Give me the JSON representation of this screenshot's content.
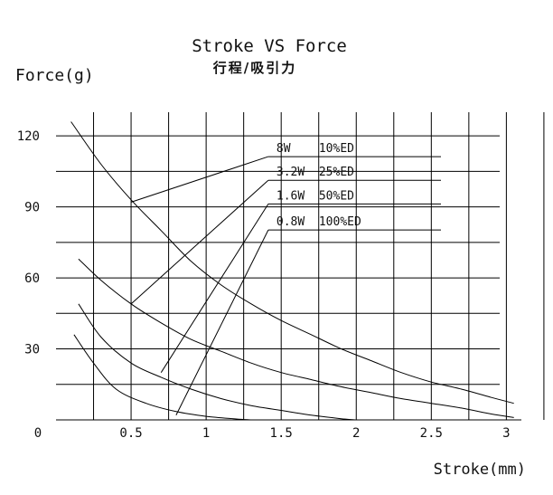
{
  "chart_data": {
    "type": "line",
    "title": "Stroke VS  Force",
    "subtitle": "行程/吸引力",
    "xlabel": "Stroke(mm)",
    "ylabel": "Force(g)",
    "xlim": [
      0,
      3.1
    ],
    "ylim": [
      0,
      130
    ],
    "x_ticks": [
      0.5,
      1,
      1.5,
      2,
      2.5,
      3
    ],
    "x_tick_labels": [
      "0.5",
      "1",
      "1.5",
      "2",
      "2.5",
      "3"
    ],
    "y_ticks": [
      0,
      30,
      60,
      90,
      120
    ],
    "y_tick_labels": [
      "0",
      "30",
      "60",
      "90",
      "120"
    ],
    "grid": true,
    "series": [
      {
        "name": "8W    10%ED",
        "x": [
          0.1,
          0.3,
          0.5,
          0.7,
          0.9,
          1.1,
          1.3,
          1.5,
          1.7,
          1.9,
          2.1,
          2.3,
          2.5,
          2.7,
          2.9,
          3.05
        ],
        "y": [
          126,
          108,
          93,
          80,
          67,
          57,
          49,
          42,
          36,
          30,
          25,
          20,
          16,
          13,
          9.5,
          7
        ]
      },
      {
        "name": "3.2W  25%ED",
        "x": [
          0.15,
          0.3,
          0.5,
          0.7,
          0.9,
          1.1,
          1.3,
          1.5,
          1.7,
          1.9,
          2.1,
          2.3,
          2.5,
          2.7,
          2.9,
          3.05
        ],
        "y": [
          68,
          59,
          49,
          41,
          34,
          29,
          24,
          20,
          17,
          14,
          11.5,
          9,
          7,
          5,
          2.5,
          1
        ]
      },
      {
        "name": "1.6W  50%ED",
        "x": [
          0.15,
          0.3,
          0.5,
          0.7,
          0.9,
          1.1,
          1.3,
          1.5,
          1.7,
          1.9,
          2.0
        ],
        "y": [
          49,
          35,
          24,
          18,
          13,
          9,
          6,
          4,
          2,
          0.5,
          0
        ]
      },
      {
        "name": "0.8W  100%ED",
        "x": [
          0.12,
          0.25,
          0.4,
          0.6,
          0.8,
          1.0,
          1.2,
          1.3
        ],
        "y": [
          36,
          24,
          13,
          7,
          3.5,
          1.5,
          0.4,
          0
        ]
      }
    ],
    "annotations": [
      {
        "text": "8W    10%ED",
        "point": [
          0.5,
          92
        ],
        "label_at": [
          1.45,
          112
        ]
      },
      {
        "text": "3.2W  25%ED",
        "point": [
          0.5,
          49
        ],
        "label_at": [
          1.45,
          102
        ]
      },
      {
        "text": "1.6W  50%ED",
        "point": [
          0.7,
          20
        ],
        "label_at": [
          1.45,
          92
        ]
      },
      {
        "text": "0.8W  100%ED",
        "point": [
          0.8,
          2
        ],
        "label_at": [
          1.45,
          81
        ]
      }
    ]
  }
}
